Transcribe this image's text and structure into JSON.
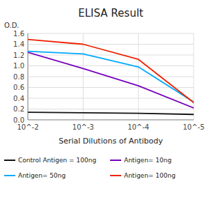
{
  "chart_data": {
    "type": "line",
    "title": "ELISA Result",
    "y_label": "O.D.",
    "x_label": "Serial Dilutions of Antibody",
    "x": [
      100,
      1000,
      10000,
      100000
    ],
    "series": [
      {
        "name": "Control Antigen = 100ng",
        "color": "#111111",
        "values": [
          0.14,
          0.13,
          0.12,
          0.1
        ]
      },
      {
        "name": "Antigen= 10ng",
        "color": "#7700bb",
        "values": [
          1.25,
          0.95,
          0.63,
          0.22
        ]
      },
      {
        "name": "Antigen= 50ng",
        "color": "#00aaff",
        "values": [
          1.27,
          1.22,
          0.98,
          0.33
        ]
      },
      {
        "name": "Antigen= 100ng",
        "color": "#ee2200",
        "values": [
          1.49,
          1.4,
          1.12,
          0.32
        ]
      }
    ],
    "log": "x",
    "xlim": [
      100,
      100000
    ],
    "xticks": [
      {
        "value": 100,
        "label": "10^-2"
      },
      {
        "value": 1000,
        "label": "10^-3"
      },
      {
        "value": 10000,
        "label": "10^-4"
      },
      {
        "value": 100000,
        "label": "10^-5"
      }
    ],
    "ylim": [
      0,
      1.6
    ],
    "yticks": [
      {
        "value": 0,
        "label": "0.0"
      },
      0.2,
      0.4,
      0.6,
      0.8,
      {
        "value": 1,
        "label": "1.0"
      },
      1.2,
      1.4,
      1.6
    ],
    "grid": true,
    "legend": "bottom"
  }
}
